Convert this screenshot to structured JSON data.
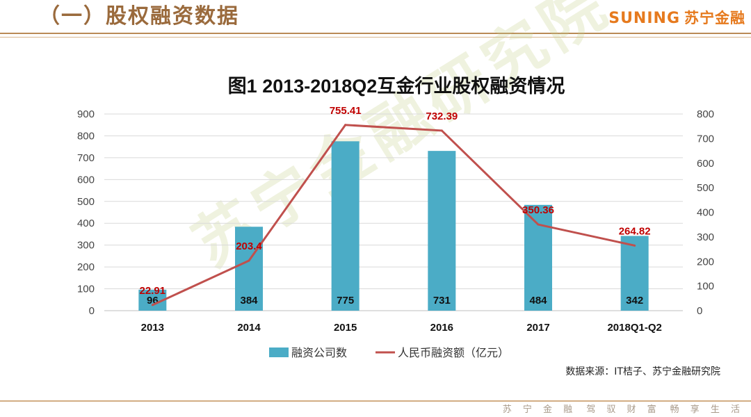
{
  "header": {
    "title": "（一）股权融资数据",
    "logo_text": "SUNING",
    "logo_cn": "苏宁金融"
  },
  "footer": {
    "slogan_1": "苏 宁 金 融",
    "slogan_2": "驾 驭 财 富",
    "slogan_3": "畅 享 生 活"
  },
  "watermark": "苏宁金融研究院",
  "chart_data": {
    "type": "bar",
    "title": "图1  2013-2018Q2互金行业股权融资情况",
    "categories": [
      "2013",
      "2014",
      "2015",
      "2016",
      "2017",
      "2018Q1-Q2"
    ],
    "series": [
      {
        "name": "融资公司数",
        "type": "bar",
        "axis": "left",
        "values": [
          96,
          384,
          775,
          731,
          484,
          342
        ],
        "color": "#4bacc6"
      },
      {
        "name": "人民币融资额（亿元）",
        "type": "line",
        "axis": "right",
        "values": [
          22.91,
          203.4,
          755.41,
          732.39,
          350.36,
          264.82
        ],
        "labels": [
          "22.91",
          "203.4",
          "755.41",
          "732.39",
          "350.36",
          "264.82"
        ],
        "color": "#c0504d"
      }
    ],
    "y_left": {
      "min": 0,
      "max": 900,
      "step": 100
    },
    "y_right": {
      "min": 0,
      "max": 800,
      "step": 100
    },
    "grid": true,
    "legend_position": "bottom",
    "source": "数据来源：IT桔子、苏宁金融研究院"
  }
}
